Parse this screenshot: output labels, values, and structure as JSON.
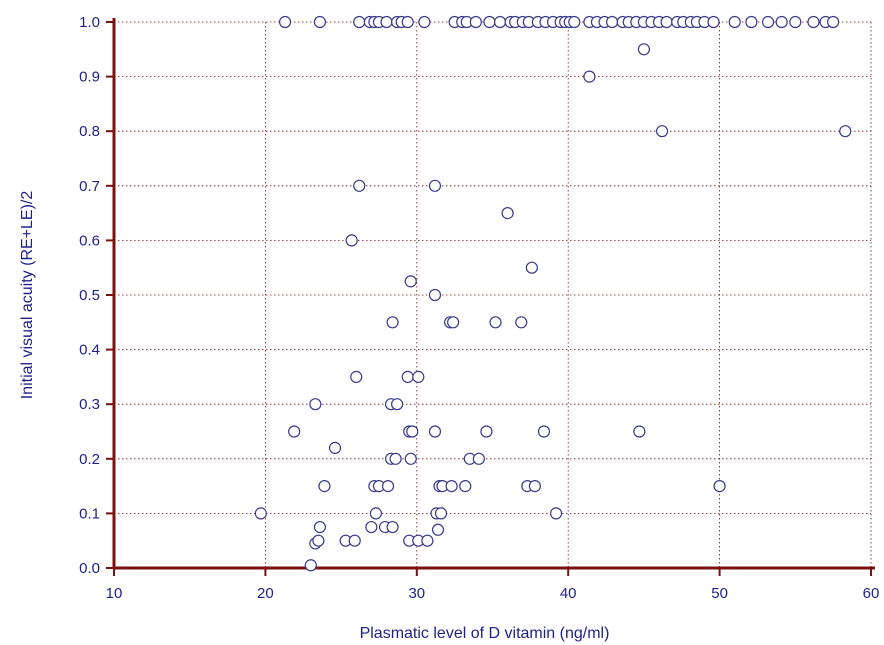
{
  "colors": {
    "axis": "#7a1010",
    "grid": "#7a1010",
    "marker_stroke": "#3a3a8c",
    "text": "#1f1f8a"
  },
  "chart_data": {
    "type": "scatter",
    "title": "",
    "xlabel": "Plasmatic level of D vitamin  (ng/ml)",
    "ylabel": "Initial visual acuity  (RE+LE)/2",
    "xlim": [
      10,
      60
    ],
    "ylim": [
      0,
      1
    ],
    "xticks": [
      10,
      20,
      30,
      40,
      50,
      60
    ],
    "yticks": [
      0.0,
      0.1,
      0.2,
      0.3,
      0.4,
      0.5,
      0.6,
      0.7,
      0.8,
      0.9,
      1.0
    ],
    "ytick_labels": [
      "0.0",
      "0.1",
      "0.2",
      "0.3",
      "0.4",
      "0.5",
      "0.6",
      "0.7",
      "0.8",
      "0.9",
      "1.0"
    ],
    "grid": true,
    "grid_style": "dotted",
    "marker": "open-circle",
    "points": [
      [
        21.3,
        1.0
      ],
      [
        23.6,
        1.0
      ],
      [
        26.2,
        1.0
      ],
      [
        26.9,
        1.0
      ],
      [
        27.2,
        1.0
      ],
      [
        27.5,
        1.0
      ],
      [
        28.0,
        1.0
      ],
      [
        28.7,
        1.0
      ],
      [
        29.0,
        1.0
      ],
      [
        29.4,
        1.0
      ],
      [
        30.5,
        1.0
      ],
      [
        32.5,
        1.0
      ],
      [
        33.0,
        1.0
      ],
      [
        33.3,
        1.0
      ],
      [
        33.9,
        1.0
      ],
      [
        34.8,
        1.0
      ],
      [
        35.5,
        1.0
      ],
      [
        36.2,
        1.0
      ],
      [
        36.5,
        1.0
      ],
      [
        37.0,
        1.0
      ],
      [
        37.4,
        1.0
      ],
      [
        38.0,
        1.0
      ],
      [
        38.5,
        1.0
      ],
      [
        39.0,
        1.0
      ],
      [
        39.5,
        1.0
      ],
      [
        39.8,
        1.0
      ],
      [
        40.1,
        1.0
      ],
      [
        40.4,
        1.0
      ],
      [
        41.4,
        1.0
      ],
      [
        41.9,
        1.0
      ],
      [
        42.4,
        1.0
      ],
      [
        42.9,
        1.0
      ],
      [
        43.6,
        1.0
      ],
      [
        44.0,
        1.0
      ],
      [
        44.5,
        1.0
      ],
      [
        45.0,
        1.0
      ],
      [
        45.5,
        1.0
      ],
      [
        46.0,
        1.0
      ],
      [
        46.5,
        1.0
      ],
      [
        47.2,
        1.0
      ],
      [
        47.6,
        1.0
      ],
      [
        48.1,
        1.0
      ],
      [
        48.5,
        1.0
      ],
      [
        49.0,
        1.0
      ],
      [
        49.6,
        1.0
      ],
      [
        51.0,
        1.0
      ],
      [
        52.1,
        1.0
      ],
      [
        53.2,
        1.0
      ],
      [
        54.1,
        1.0
      ],
      [
        55.0,
        1.0
      ],
      [
        56.2,
        1.0
      ],
      [
        57.0,
        1.0
      ],
      [
        57.5,
        1.0
      ],
      [
        45.0,
        0.95
      ],
      [
        41.4,
        0.9
      ],
      [
        46.2,
        0.8
      ],
      [
        58.3,
        0.8
      ],
      [
        26.2,
        0.7
      ],
      [
        31.2,
        0.7
      ],
      [
        36.0,
        0.65
      ],
      [
        25.7,
        0.6
      ],
      [
        37.6,
        0.55
      ],
      [
        29.6,
        0.525
      ],
      [
        31.2,
        0.5
      ],
      [
        28.4,
        0.45
      ],
      [
        32.2,
        0.45
      ],
      [
        32.4,
        0.45
      ],
      [
        35.2,
        0.45
      ],
      [
        36.9,
        0.45
      ],
      [
        26.0,
        0.35
      ],
      [
        29.4,
        0.35
      ],
      [
        30.1,
        0.35
      ],
      [
        23.3,
        0.3
      ],
      [
        28.3,
        0.3
      ],
      [
        28.7,
        0.3
      ],
      [
        21.9,
        0.25
      ],
      [
        29.5,
        0.25
      ],
      [
        29.7,
        0.25
      ],
      [
        31.2,
        0.25
      ],
      [
        34.6,
        0.25
      ],
      [
        38.4,
        0.25
      ],
      [
        44.7,
        0.25
      ],
      [
        24.6,
        0.22
      ],
      [
        28.3,
        0.2
      ],
      [
        28.6,
        0.2
      ],
      [
        29.6,
        0.2
      ],
      [
        33.5,
        0.2
      ],
      [
        34.1,
        0.2
      ],
      [
        23.9,
        0.15
      ],
      [
        27.2,
        0.15
      ],
      [
        27.5,
        0.15
      ],
      [
        28.1,
        0.15
      ],
      [
        31.5,
        0.15
      ],
      [
        31.7,
        0.15
      ],
      [
        32.3,
        0.15
      ],
      [
        33.2,
        0.15
      ],
      [
        37.3,
        0.15
      ],
      [
        37.8,
        0.15
      ],
      [
        50.0,
        0.15
      ],
      [
        19.7,
        0.1
      ],
      [
        27.3,
        0.1
      ],
      [
        31.3,
        0.1
      ],
      [
        31.6,
        0.1
      ],
      [
        39.2,
        0.1
      ],
      [
        23.6,
        0.075
      ],
      [
        27.0,
        0.075
      ],
      [
        27.9,
        0.075
      ],
      [
        28.4,
        0.075
      ],
      [
        31.4,
        0.07
      ],
      [
        23.3,
        0.045
      ],
      [
        23.5,
        0.05
      ],
      [
        25.3,
        0.05
      ],
      [
        25.9,
        0.05
      ],
      [
        29.5,
        0.05
      ],
      [
        30.1,
        0.05
      ],
      [
        30.7,
        0.05
      ],
      [
        23.0,
        0.005
      ]
    ]
  }
}
